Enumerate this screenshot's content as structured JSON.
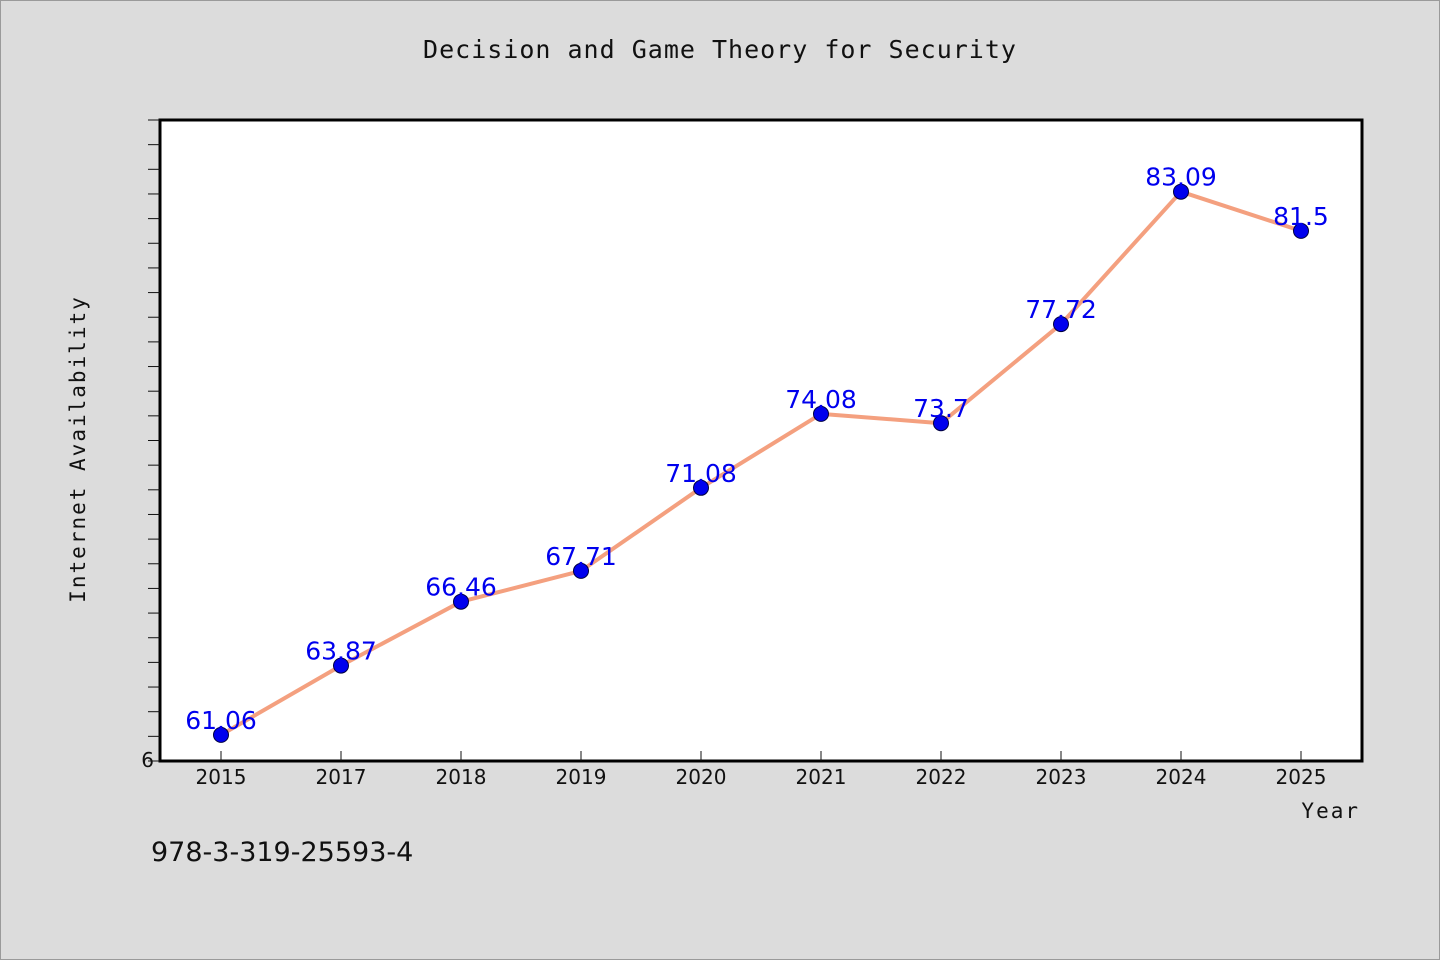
{
  "chart_data": {
    "type": "line",
    "title": "Decision and Game Theory for Security",
    "xlabel": "Year",
    "ylabel": "Internet Availability",
    "categories": [
      "2015",
      "2017",
      "2018",
      "2019",
      "2020",
      "2021",
      "2022",
      "2023",
      "2024",
      "2025"
    ],
    "series": [
      {
        "values": [
          61.06,
          63.87,
          66.46,
          67.71,
          71.08,
          74.08,
          73.7,
          77.72,
          83.09,
          81.5
        ]
      }
    ],
    "data_labels": [
      "61.06",
      "63.87",
      "66.46",
      "67.71",
      "71.08",
      "74.08",
      "73.7",
      "77.72",
      "83.09",
      "81.5"
    ],
    "ylim": [
      60,
      86
    ],
    "y_tick_label": "6",
    "grid": false,
    "legend": "none",
    "colors": {
      "line": "#f4a07f",
      "marker": "#0000ee",
      "data_label": "#0000ee",
      "plot_background": "#ffffff",
      "figure_background": "#dcdcdc"
    }
  },
  "annotation": {
    "isbn": "978-3-319-25593-4"
  }
}
